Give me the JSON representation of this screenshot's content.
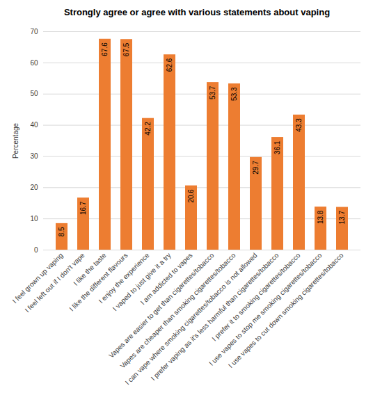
{
  "chart_data": {
    "type": "bar",
    "title": "Strongly agree or agree with various statements about vaping",
    "y_label": "Percentage",
    "categories": [
      "I feel grown up vaping",
      "I feel left out if I don't vape",
      "I like the taste",
      "I like the different flavours",
      "I enjoy the experience",
      "I vaped to just give it a try",
      "I am addicted to vapes",
      "Vapes are easier to get than cigarettes/tobacco",
      "Vapes are cheaper than smoking cigarettes/tobacco",
      "I can vape where smoking cigarettes/tobacco is not allowed",
      "I prefer vaping as it's less harmful than cigarettes/tobacco",
      "I prefer it to smoking cigarettes/tobacco",
      "I use vapes to stop me smoking cigarettes/tobacco",
      "I use vapes to cut down smoking cigarettes/tobacco"
    ],
    "values": [
      8.5,
      16.7,
      67.6,
      67.5,
      42.2,
      62.6,
      20.6,
      53.7,
      53.3,
      29.7,
      36.1,
      43.3,
      13.8,
      13.7
    ],
    "color": "#ed7d31",
    "ylim": [
      0,
      70
    ],
    "yticks": [
      0,
      10,
      20,
      30,
      40,
      50,
      60,
      70
    ],
    "grid": true,
    "data_labels": true
  }
}
